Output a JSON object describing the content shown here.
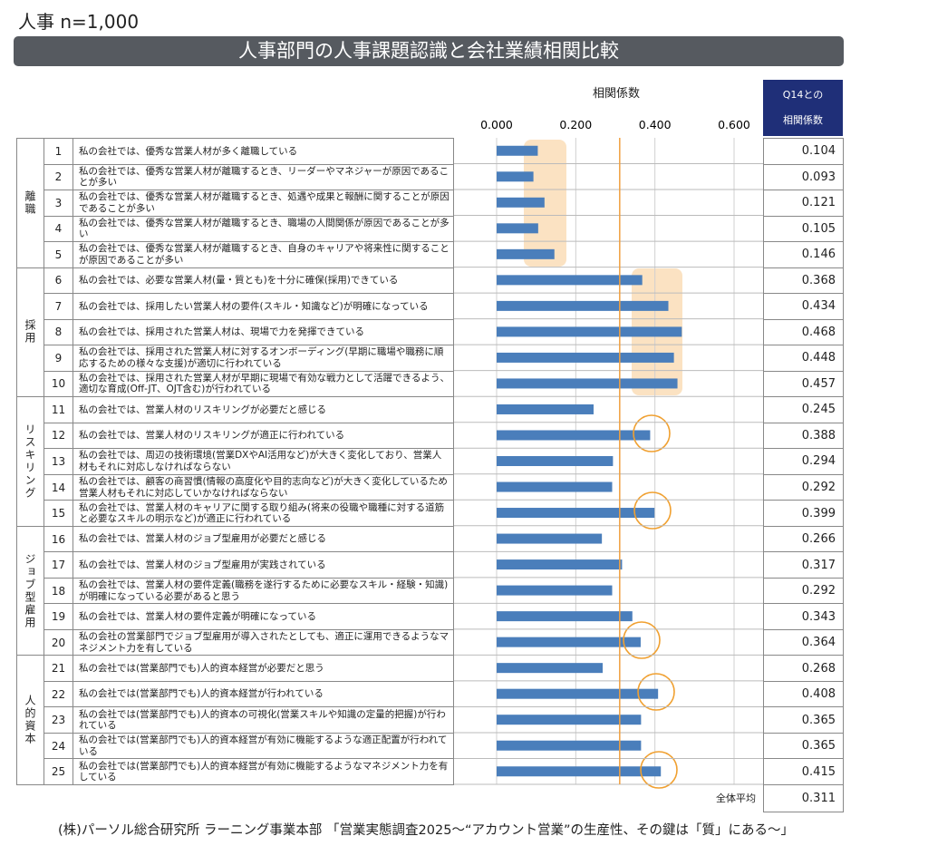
{
  "header": {
    "sub": "人事 n=1,000",
    "title": "人事部門の人事課題認識と会社業績相関比較",
    "value_header": [
      "Q14との",
      "相関係数"
    ]
  },
  "chart_data": {
    "type": "bar",
    "axis_label": "相関係数",
    "xlim": [
      0,
      0.6
    ],
    "xticks": [
      {
        "value": 0,
        "label": "0.000"
      },
      {
        "value": 0.2,
        "label": "0.200"
      },
      {
        "value": 0.4,
        "label": "0.400"
      },
      {
        "value": 0.6,
        "label": "0.600"
      }
    ],
    "grid": true,
    "color": "#4a7ebb",
    "groups": [
      {
        "label": "離職",
        "items": [
          {
            "no": 1,
            "text": "私の会社では、優秀な営業人材が多く離職している",
            "value": 0.104
          },
          {
            "no": 2,
            "text": "私の会社では、優秀な営業人材が離職するとき、リーダーやマネジャーが原因であることが多い",
            "value": 0.093
          },
          {
            "no": 3,
            "text": "私の会社では、優秀な営業人材が離職するとき、処遇や成果と報酬に関することが原因であることが多い",
            "value": 0.121
          },
          {
            "no": 4,
            "text": "私の会社では、優秀な営業人材が離職するとき、職場の人間関係が原因であることが多い",
            "value": 0.105
          },
          {
            "no": 5,
            "text": "私の会社では、優秀な営業人材が離職するとき、自身のキャリアや将来性に関することが原因であることが多い",
            "value": 0.146
          }
        ]
      },
      {
        "label": "採用",
        "items": [
          {
            "no": 6,
            "text": "私の会社では、必要な営業人材(量・質とも)を十分に確保(採用)できている",
            "value": 0.368
          },
          {
            "no": 7,
            "text": "私の会社では、採用したい営業人材の要件(スキル・知識など)が明確になっている",
            "value": 0.434
          },
          {
            "no": 8,
            "text": "私の会社では、採用された営業人材は、現場で力を発揮できている",
            "value": 0.468
          },
          {
            "no": 9,
            "text": "私の会社では、採用された営業人材に対するオンボーディング(早期に職場や職務に順応するための様々な支援)が適切に行われている",
            "value": 0.448
          },
          {
            "no": 10,
            "text": "私の会社では、採用された営業人材が早期に現場で有効な戦力として活躍できるよう、適切な育成(Off-JT、OJT含む)が行われている",
            "value": 0.457
          }
        ]
      },
      {
        "label": "リスキリング",
        "items": [
          {
            "no": 11,
            "text": "私の会社では、営業人材のリスキリングが必要だと感じる",
            "value": 0.245
          },
          {
            "no": 12,
            "text": "私の会社では、営業人材のリスキリングが適正に行われている",
            "value": 0.388
          },
          {
            "no": 13,
            "text": "私の会社では、周辺の技術環境(営業DXやAI活用など)が大きく変化しており、営業人材もそれに対応しなければならない",
            "value": 0.294
          },
          {
            "no": 14,
            "text": "私の会社では、顧客の商習慣(情報の高度化や目的志向など)が大きく変化しているため営業人材もそれに対応していかなければならない",
            "value": 0.292
          },
          {
            "no": 15,
            "text": "私の会社では、営業人材のキャリアに関する取り組み(将来の役職や職種に対する道筋と必要なスキルの明示など)が適正に行われている",
            "value": 0.399
          }
        ]
      },
      {
        "label": "ジョブ型雇用",
        "items": [
          {
            "no": 16,
            "text": "私の会社では、営業人材のジョブ型雇用が必要だと感じる",
            "value": 0.266
          },
          {
            "no": 17,
            "text": "私の会社では、営業人材のジョブ型雇用が実践されている",
            "value": 0.317
          },
          {
            "no": 18,
            "text": "私の会社では、営業人材の要件定義(職務を遂行するために必要なスキル・経験・知識)が明確になっている必要があると思う",
            "value": 0.292
          },
          {
            "no": 19,
            "text": "私の会社では、営業人材の要件定義が明確になっている",
            "value": 0.343
          },
          {
            "no": 20,
            "text": "私の会社の営業部門でジョブ型雇用が導入されたとしても、適正に運用できるようなマネジメント力を有している",
            "value": 0.364
          }
        ]
      },
      {
        "label": "人的資本",
        "items": [
          {
            "no": 21,
            "text": "私の会社では(営業部門でも)人的資本経営が必要だと思う",
            "value": 0.268
          },
          {
            "no": 22,
            "text": "私の会社では(営業部門でも)人的資本経営が行われている",
            "value": 0.408
          },
          {
            "no": 23,
            "text": "私の会社では(営業部門でも)人的資本の可視化(営業スキルや知識の定量的把握)が行われている",
            "value": 0.365
          },
          {
            "no": 24,
            "text": "私の会社では(営業部門でも)人的資本経営が有効に機能するような適正配置が行われている",
            "value": 0.365
          },
          {
            "no": 25,
            "text": "私の会社では(営業部門でも)人的資本経営が有効に機能するようなマネジメント力を有している",
            "value": 0.415
          }
        ]
      }
    ],
    "average_label": "全体平均",
    "average": 0.311,
    "average_color": "#f0a040"
  },
  "footer": "(株)パーソル総合研究所 ラーニング事業本部 「営業実態調査2025～“アカウント営業”の生産性、その鍵は「質」にある～」"
}
